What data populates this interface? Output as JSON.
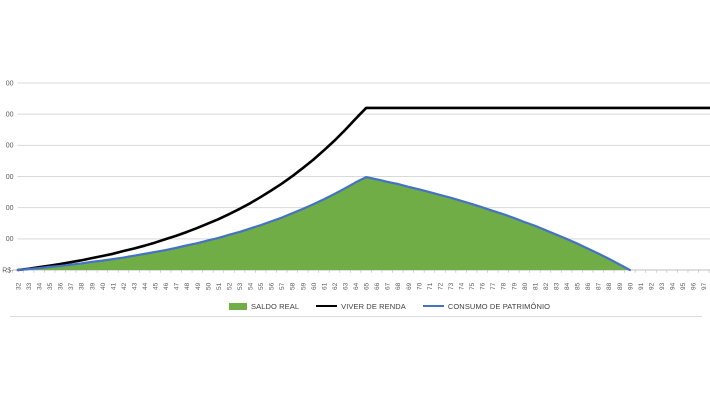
{
  "chart_data": {
    "type": "area-line-combo",
    "title": "",
    "x_label": "",
    "y_label": "",
    "x": [
      32,
      33,
      34,
      35,
      36,
      37,
      38,
      39,
      40,
      41,
      42,
      43,
      44,
      45,
      46,
      47,
      48,
      49,
      50,
      51,
      52,
      53,
      54,
      55,
      56,
      57,
      58,
      59,
      60,
      61,
      62,
      63,
      64,
      65,
      66,
      67,
      68,
      69,
      70,
      71,
      72,
      73,
      74,
      75,
      76,
      77,
      78,
      79,
      80,
      81,
      82,
      83,
      84,
      85,
      86,
      87,
      88,
      89,
      90,
      91,
      92,
      93,
      94,
      95,
      96,
      97
    ],
    "x_axis": {
      "tick_label_rotation_deg": -90,
      "first_label": "32",
      "last_label": "97"
    },
    "y_axis": {
      "zero_label": "R$-",
      "gridline_labels_top_to_bottom": [
        "00",
        "00",
        "00",
        "00",
        "00",
        "00"
      ],
      "gridline_step_units": 1,
      "ylim": [
        0,
        6
      ],
      "grid": true,
      "labels_clipped_at_left_edge": true
    },
    "series": [
      {
        "name": "SALDO REAL",
        "kind": "area",
        "color": "#70AD47",
        "values": [
          0,
          0.03,
          0.06,
          0.1,
          0.13,
          0.17,
          0.21,
          0.26,
          0.3,
          0.35,
          0.4,
          0.46,
          0.52,
          0.58,
          0.64,
          0.71,
          0.79,
          0.86,
          0.95,
          1.03,
          1.13,
          1.22,
          1.33,
          1.44,
          1.56,
          1.68,
          1.82,
          1.96,
          2.11,
          2.27,
          2.44,
          2.62,
          2.81,
          2.98,
          2.91,
          2.83,
          2.76,
          2.67,
          2.59,
          2.5,
          2.41,
          2.32,
          2.22,
          2.12,
          2.01,
          1.9,
          1.79,
          1.67,
          1.54,
          1.42,
          1.28,
          1.14,
          1.0,
          0.85,
          0.69,
          0.53,
          0.36,
          0.18,
          0,
          null,
          null,
          null,
          null,
          null,
          null,
          null
        ]
      },
      {
        "name": "VIVER DE RENDA",
        "kind": "line",
        "color": "#000000",
        "stroke_width": 2.6,
        "extends_to_right_edge": true,
        "values": [
          0,
          0.04,
          0.09,
          0.14,
          0.19,
          0.25,
          0.31,
          0.38,
          0.45,
          0.52,
          0.61,
          0.69,
          0.78,
          0.88,
          0.99,
          1.1,
          1.22,
          1.35,
          1.49,
          1.63,
          1.79,
          1.96,
          2.14,
          2.34,
          2.55,
          2.77,
          3.01,
          3.27,
          3.54,
          3.84,
          4.15,
          4.49,
          4.85,
          5.2,
          5.2,
          5.2,
          5.2,
          5.2,
          5.2,
          5.2,
          5.2,
          5.2,
          5.2,
          5.2,
          5.2,
          5.2,
          5.2,
          5.2,
          5.2,
          5.2,
          5.2,
          5.2,
          5.2,
          5.2,
          5.2,
          5.2,
          5.2,
          5.2,
          5.2,
          5.2,
          5.2,
          5.2,
          5.2,
          5.2,
          5.2,
          5.2
        ]
      },
      {
        "name": "CONSUMO DE PATRIMÔNIO",
        "kind": "line",
        "color": "#4472C4",
        "stroke_width": 2.2,
        "values": [
          0,
          0.03,
          0.06,
          0.1,
          0.13,
          0.17,
          0.21,
          0.26,
          0.3,
          0.35,
          0.4,
          0.46,
          0.52,
          0.58,
          0.64,
          0.71,
          0.79,
          0.86,
          0.95,
          1.03,
          1.13,
          1.22,
          1.33,
          1.44,
          1.56,
          1.68,
          1.82,
          1.96,
          2.11,
          2.27,
          2.44,
          2.62,
          2.81,
          2.98,
          2.91,
          2.83,
          2.76,
          2.67,
          2.59,
          2.5,
          2.41,
          2.32,
          2.22,
          2.12,
          2.01,
          1.9,
          1.79,
          1.67,
          1.54,
          1.42,
          1.28,
          1.14,
          1.0,
          0.85,
          0.69,
          0.53,
          0.36,
          0.18,
          0,
          null,
          null,
          null,
          null,
          null,
          null,
          null
        ]
      }
    ],
    "legend": {
      "position": "bottom",
      "items": [
        {
          "label": "SALDO REAL",
          "swatch": "rect",
          "color": "#70AD47"
        },
        {
          "label": "VIVER DE RENDA",
          "swatch": "line",
          "color": "#000000"
        },
        {
          "label": "CONSUMO DE PATRIMÔNIO",
          "swatch": "line",
          "color": "#4472C4"
        }
      ]
    },
    "style": {
      "gridline_color": "#D9D9D9",
      "axis_line_color": "#BFBFBF",
      "tick_color": "#BFBFBF",
      "axis_label_color": "#595959",
      "background": "#FFFFFF"
    }
  }
}
